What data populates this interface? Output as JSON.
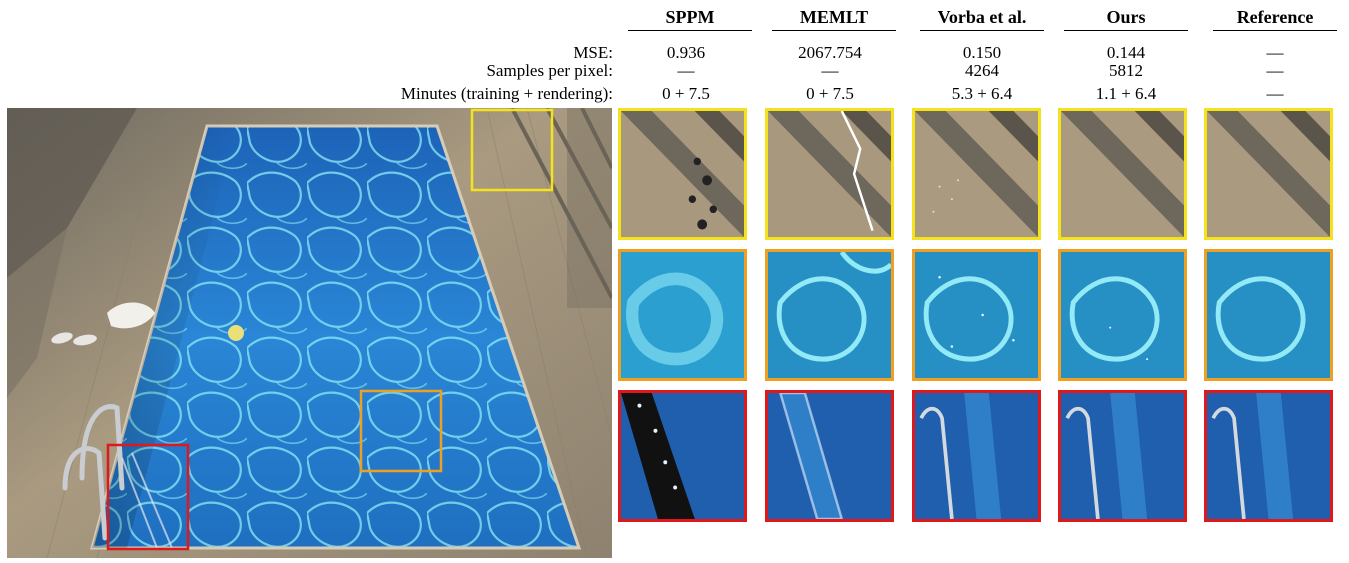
{
  "methods": [
    {
      "name": "SPPM",
      "mse": "0.936",
      "spp": "—",
      "minutes": "0 + 7.5"
    },
    {
      "name": "MEMLT",
      "mse": "2067.754",
      "spp": "—",
      "minutes": "0 + 7.5"
    },
    {
      "name": "Vorba et al.",
      "mse": "0.150",
      "spp": "4264",
      "minutes": "5.3 + 6.4"
    },
    {
      "name": "Ours",
      "mse": "0.144",
      "spp": "5812",
      "minutes": "1.1 + 6.4"
    },
    {
      "name": "Reference",
      "mse": "—",
      "spp": "—",
      "minutes": "—"
    }
  ],
  "row_labels": {
    "mse": "MSE:",
    "spp": "Samples per pixel:",
    "minutes": "Minutes (training + rendering):"
  },
  "crop_rows": [
    {
      "region": "window-frame",
      "border_color": "#f4e31c"
    },
    {
      "region": "water-caustics",
      "border_color": "#f0a020"
    },
    {
      "region": "pool-ladder",
      "border_color": "#e0181c"
    }
  ],
  "colors": {
    "water": "#1f6fc0",
    "caustic": "#7fe4f4",
    "stone": "#b7a78c"
  }
}
